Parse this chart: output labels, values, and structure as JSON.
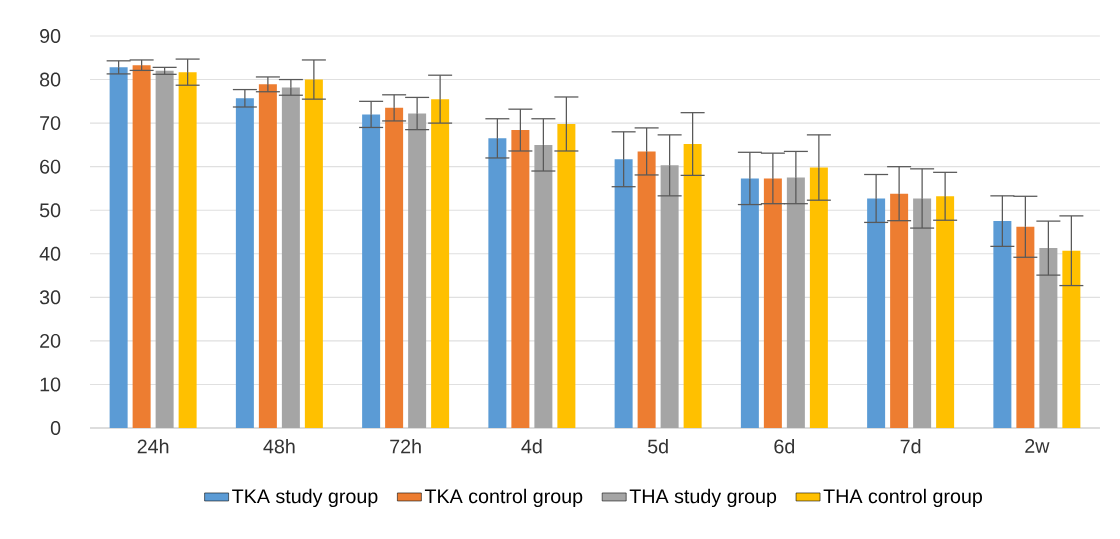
{
  "chart_data": {
    "type": "bar",
    "categories": [
      "24h",
      "48h",
      "72h",
      "4d",
      "5d",
      "6d",
      "7d",
      "2w"
    ],
    "series": [
      {
        "name": "TKA study group",
        "color": "#5b9bd5",
        "values": [
          82.8,
          75.7,
          72,
          66.5,
          61.7,
          57.3,
          52.7,
          47.5
        ],
        "errors": [
          1.5,
          2,
          3,
          4.5,
          6.3,
          6,
          5.5,
          5.8
        ]
      },
      {
        "name": "TKA control group",
        "color": "#ed7d31",
        "values": [
          83.3,
          78.9,
          73.5,
          68.4,
          63.5,
          57.3,
          53.8,
          46.2
        ],
        "errors": [
          1.2,
          1.7,
          3,
          4.8,
          5.4,
          5.8,
          6.2,
          7
        ]
      },
      {
        "name": "THA study group",
        "color": "#a5a5a5",
        "values": [
          82,
          78.2,
          72.2,
          65,
          60.3,
          57.5,
          52.7,
          41.3
        ],
        "errors": [
          0.8,
          1.8,
          3.7,
          6,
          7,
          6,
          6.8,
          6.2
        ]
      },
      {
        "name": "THA control group",
        "color": "#ffc000",
        "values": [
          81.7,
          80,
          75.5,
          69.8,
          65.2,
          59.8,
          53.2,
          40.7
        ],
        "errors": [
          3,
          4.5,
          5.5,
          6.2,
          7.2,
          7.5,
          5.5,
          8
        ]
      }
    ],
    "ylim": [
      0,
      90
    ],
    "yticks": [
      0,
      10,
      20,
      30,
      40,
      50,
      60,
      70,
      80,
      90
    ],
    "grid": "y",
    "legend": "bottom"
  }
}
